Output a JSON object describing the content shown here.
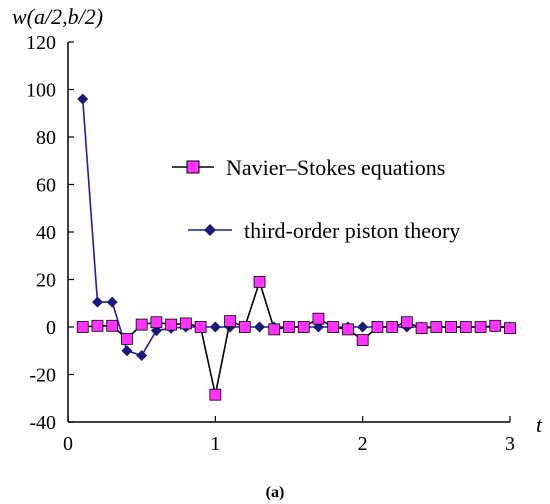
{
  "chart_data": {
    "type": "line",
    "title": "",
    "ylabel": "w(a/2,b/2)",
    "xlabel": "t",
    "caption": "(a)",
    "xlim": [
      0,
      3
    ],
    "ylim": [
      -40,
      120
    ],
    "xticks": [
      "0",
      "1",
      "2",
      "3"
    ],
    "yticks": [
      "-40",
      "-20",
      "0",
      "20",
      "40",
      "60",
      "80",
      "100",
      "120"
    ],
    "grid": false,
    "legend_position": "center-right",
    "series": [
      {
        "name": "Navier–Stokes equations",
        "color": "#000000",
        "marker": "square",
        "marker_color": "#ff33ff",
        "x": [
          0.1,
          0.2,
          0.3,
          0.4,
          0.5,
          0.6,
          0.7,
          0.8,
          0.9,
          1.0,
          1.1,
          1.2,
          1.3,
          1.4,
          1.5,
          1.6,
          1.7,
          1.8,
          1.9,
          2.0,
          2.1,
          2.2,
          2.3,
          2.4,
          2.5,
          2.6,
          2.7,
          2.8,
          2.9,
          3.0
        ],
        "values": [
          0,
          0.5,
          0.5,
          -5,
          1,
          2,
          1,
          1.5,
          0,
          -28.5,
          2.5,
          0,
          19,
          -1,
          0,
          0,
          3.5,
          0,
          -1,
          -5.5,
          0,
          0,
          2,
          -0.5,
          0,
          0,
          0,
          0,
          0.5,
          -0.5
        ]
      },
      {
        "name": "third-order piston theory",
        "color": "#1f1f9a",
        "marker": "diamond",
        "marker_color": "#1a1a7a",
        "x": [
          0.1,
          0.2,
          0.3,
          0.4,
          0.5,
          0.6,
          0.7,
          0.8,
          0.9,
          1.0,
          1.1,
          1.2,
          1.3,
          1.4,
          1.5,
          1.6,
          1.7,
          1.8,
          1.9,
          2.0,
          2.1,
          2.2,
          2.3,
          2.4,
          2.5,
          2.6,
          2.7,
          2.8,
          2.9,
          3.0
        ],
        "values": [
          96,
          10.5,
          10.5,
          -10,
          -12,
          -1.5,
          -0.5,
          0,
          0,
          0,
          0,
          0,
          0,
          0,
          0,
          0,
          0,
          0,
          0,
          0,
          0,
          0,
          0,
          0,
          0,
          0,
          0,
          0,
          0,
          0
        ]
      }
    ]
  }
}
